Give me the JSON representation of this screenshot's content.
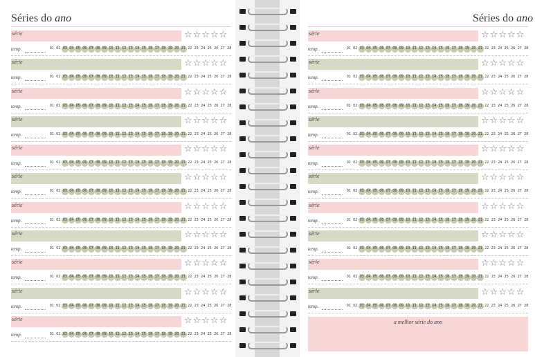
{
  "left_page": {
    "title_plain": "Séries do ",
    "title_italic": "ano"
  },
  "right_page": {
    "title_plain": "Séries do ",
    "title_italic": "ano",
    "best_series_label": "a melhor série do ano"
  },
  "entry": {
    "serie_label": "série",
    "temp_label": "temp."
  },
  "stars": [
    "☆",
    "☆",
    "☆",
    "☆",
    "☆"
  ],
  "episodes": [
    "01",
    "02",
    "03",
    "04",
    "05",
    "06",
    "07",
    "08",
    "09",
    "10",
    "11",
    "12",
    "13",
    "14",
    "15",
    "16",
    "17",
    "18",
    "19",
    "20",
    "21",
    "22",
    "23",
    "24",
    "25",
    "26",
    "27",
    "28"
  ],
  "colors": {
    "pink": "#f9d6d6",
    "sage": "#d5d9c5",
    "episode_fill": "#c4cbb2"
  },
  "row_pattern": [
    "pink",
    "sage",
    "pink",
    "sage",
    "pink",
    "sage",
    "pink",
    "sage",
    "pink",
    "sage",
    "pink"
  ]
}
